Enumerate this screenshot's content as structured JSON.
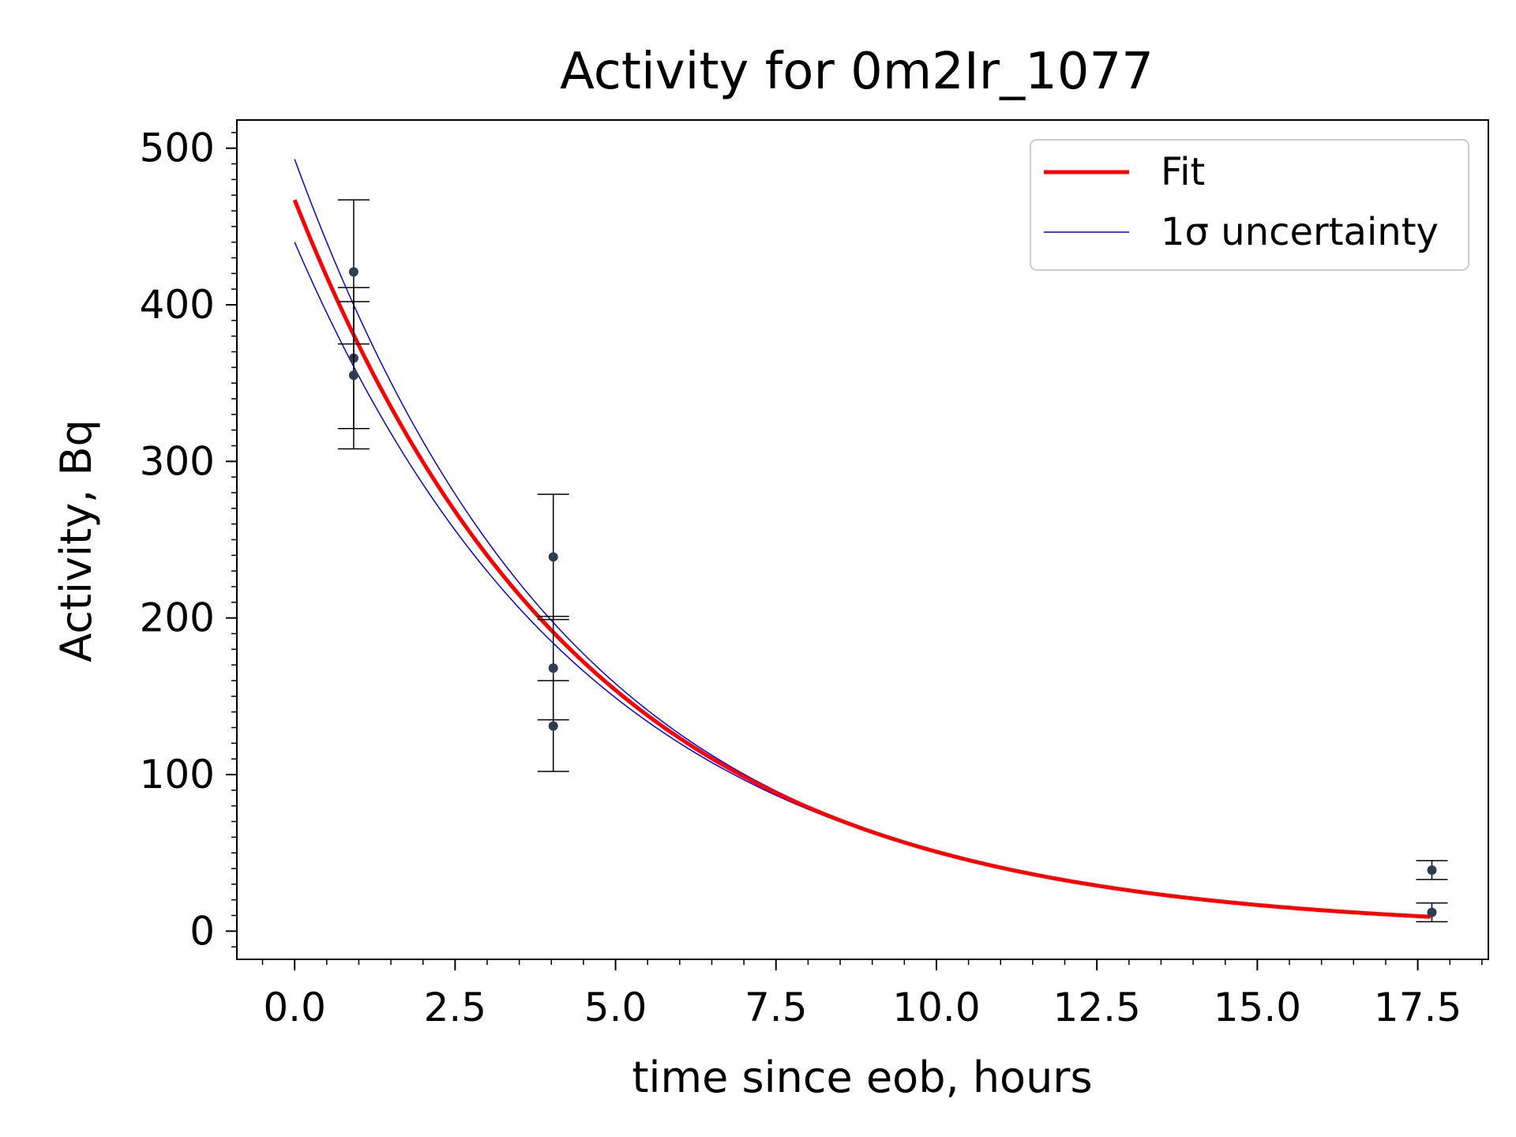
{
  "chart_data": {
    "type": "line",
    "title": "Activity for 0m2Ir_1077",
    "xlabel": "time since eob, hours",
    "ylabel": "Activity, Bq",
    "xlim": [
      -0.9,
      18.6
    ],
    "ylim": [
      -18,
      518
    ],
    "xticks": [
      0.0,
      2.5,
      5.0,
      7.5,
      10.0,
      12.5,
      15.0,
      17.5
    ],
    "xtick_labels": [
      "0.0",
      "2.5",
      "5.0",
      "7.5",
      "10.0",
      "12.5",
      "15.0",
      "17.5"
    ],
    "yticks": [
      0,
      100,
      200,
      300,
      400,
      500
    ],
    "ytick_labels": [
      "0",
      "100",
      "200",
      "300",
      "400",
      "500"
    ],
    "grid": false,
    "legend_position": "top-right",
    "legend": [
      {
        "label": "Fit",
        "color": "#ff0000"
      },
      {
        "label": "1σ uncertainty",
        "color": "#0000ff"
      }
    ],
    "fit": {
      "A0": 467,
      "lambda": 0.222,
      "x_start": 0.0,
      "x_end": 17.7
    },
    "uncertainty": {
      "upper_A0": 493,
      "upper_lambda": 0.2275,
      "lower_A0": 440,
      "lower_lambda": 0.2165
    },
    "points": [
      {
        "x": 0.92,
        "y": 421,
        "err": 46
      },
      {
        "x": 0.92,
        "y": 366,
        "err": 45
      },
      {
        "x": 0.92,
        "y": 355,
        "err": 47
      },
      {
        "x": 4.03,
        "y": 239,
        "err": 40
      },
      {
        "x": 4.03,
        "y": 168,
        "err": 33
      },
      {
        "x": 4.03,
        "y": 131,
        "err": 29
      },
      {
        "x": 17.72,
        "y": 39,
        "err": 6
      },
      {
        "x": 17.72,
        "y": 12,
        "err": 6
      }
    ],
    "colors": {
      "fit": "#ff0000",
      "uncertainty": "#0000ff",
      "points": "#2e3d50",
      "errorbar": "#000000"
    }
  }
}
